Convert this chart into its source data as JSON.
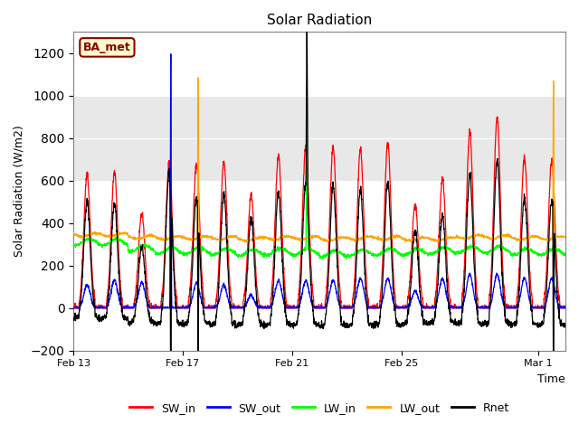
{
  "title": "Solar Radiation",
  "ylabel": "Solar Radiation (W/m2)",
  "xlabel": "Time",
  "ylim": [
    -200,
    1300
  ],
  "yticks": [
    -200,
    0,
    200,
    400,
    600,
    800,
    1000,
    1200
  ],
  "shaded_band": [
    600,
    1000
  ],
  "shaded_color": "#e8e8e8",
  "annotation_label": "BA_met",
  "annotation_box_color": "#ffffcc",
  "annotation_box_edge": "#8B0000",
  "legend_entries": [
    "SW_in",
    "SW_out",
    "LW_in",
    "LW_out",
    "Rnet"
  ],
  "line_colors": [
    "red",
    "blue",
    "lime",
    "orange",
    "black"
  ],
  "xtick_labels": [
    "Feb 13",
    "Feb 17",
    "Feb 21",
    "Feb 25",
    "Mar 1"
  ],
  "xtick_positions_days": [
    0,
    4,
    8,
    12,
    17
  ],
  "n_days": 19
}
